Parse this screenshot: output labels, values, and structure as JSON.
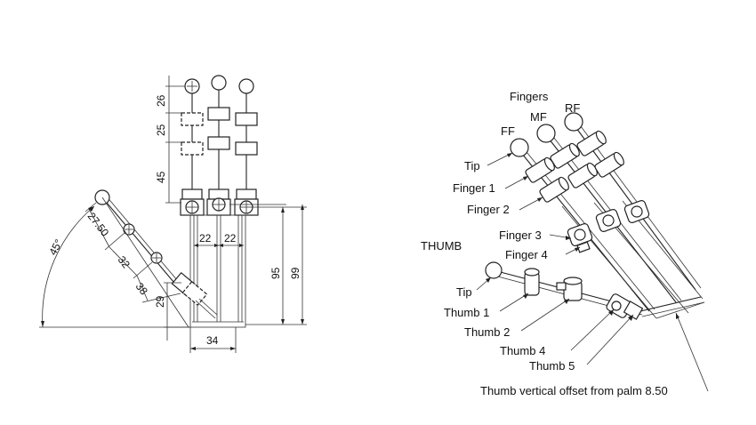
{
  "left_drawing": {
    "dims_vertical": [
      "26",
      "25",
      "45"
    ],
    "dims_palm": [
      "22",
      "22"
    ],
    "dims_height": [
      "95",
      "99"
    ],
    "dim_base": "34",
    "dims_thumb": [
      "27.50",
      "32",
      "38",
      "29"
    ],
    "angle": "45°"
  },
  "right_drawing": {
    "title_fingers": "Fingers",
    "finger_names": [
      "FF",
      "MF",
      "RF"
    ],
    "finger_labels": [
      "Tip",
      "Finger 1",
      "Finger 2",
      "Finger 3",
      "Finger 4"
    ],
    "title_thumb": "THUMB",
    "thumb_labels": [
      "Tip",
      "Thumb 1",
      "Thumb 2",
      "Thumb 4",
      "Thumb 5"
    ],
    "offset_note": "Thumb vertical offset from palm 8.50"
  }
}
